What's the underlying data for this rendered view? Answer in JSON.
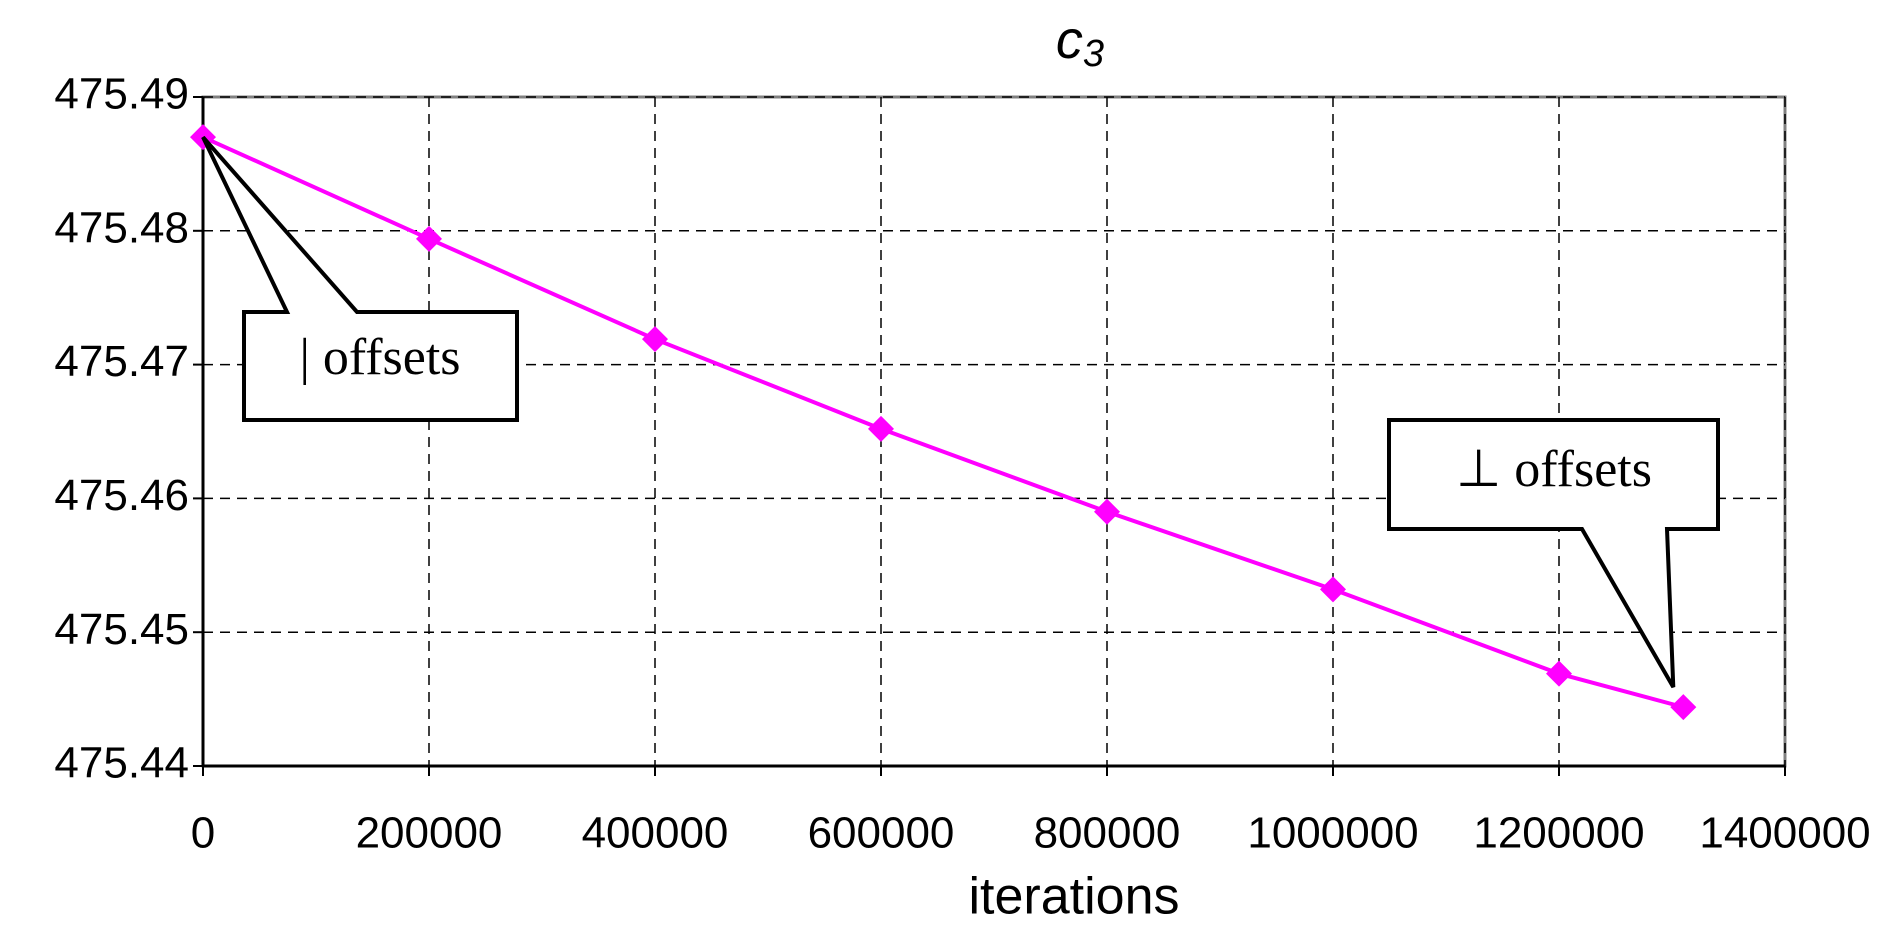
{
  "chart_data": {
    "type": "line",
    "title": {
      "text": "c",
      "subscript": "3"
    },
    "x_label": "iterations",
    "x": [
      0,
      200000,
      400000,
      600000,
      800000,
      1000000,
      1200000,
      1310000
    ],
    "series": [
      {
        "name": "c3",
        "color": "#ff00ff",
        "values": [
          475.487,
          475.4794,
          475.4719,
          475.4652,
          475.459,
          475.4532,
          475.4469,
          475.4444
        ]
      }
    ],
    "xlim": [
      0,
      1400000
    ],
    "xticks": [
      0,
      200000,
      400000,
      600000,
      800000,
      1000000,
      1200000,
      1400000
    ],
    "ylim": [
      475.44,
      475.49
    ],
    "yticks": [
      475.44,
      475.45,
      475.46,
      475.47,
      475.48,
      475.49
    ],
    "grid": true,
    "annotations": [
      {
        "text": "| offsets"
      },
      {
        "text": "⊥ offsets"
      }
    ]
  }
}
